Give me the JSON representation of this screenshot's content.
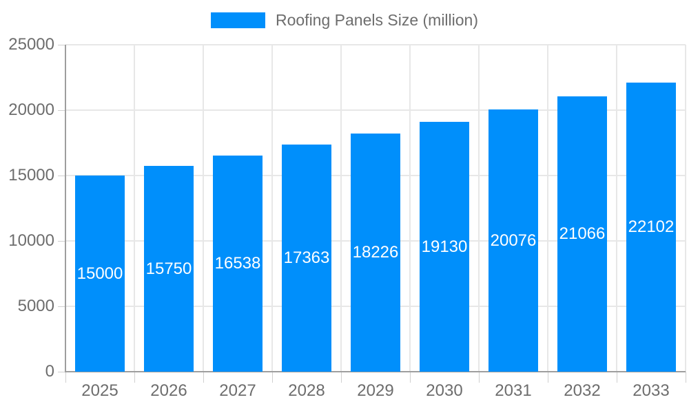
{
  "chart_data": {
    "type": "bar",
    "title": "",
    "legend_label": "Roofing Panels Size (million)",
    "legend_position": "top",
    "categories": [
      "2025",
      "2026",
      "2027",
      "2028",
      "2029",
      "2030",
      "2031",
      "2032",
      "2033"
    ],
    "values": [
      15000,
      15750,
      16538,
      17363,
      18226,
      19130,
      20076,
      21066,
      22102
    ],
    "data_labels": [
      "15000",
      "15750",
      "16538",
      "17363",
      "18226",
      "19130",
      "20076",
      "21066",
      "22102"
    ],
    "xlabel": "",
    "ylabel": "",
    "ylim": [
      0,
      25000
    ],
    "ytick_step": 5000,
    "ytick_labels": [
      "0",
      "5000",
      "10000",
      "15000",
      "20000",
      "25000"
    ],
    "grid": "both",
    "colors": {
      "bar": "#008FFB",
      "data_label": "#ffffff",
      "axis_text": "#6d6d6d",
      "legend_text": "#6d6d6d",
      "gridline": "#e7e7e7",
      "axis_line": "#9e9e9e",
      "tick": "#cfcfcf",
      "background": "#ffffff"
    }
  }
}
